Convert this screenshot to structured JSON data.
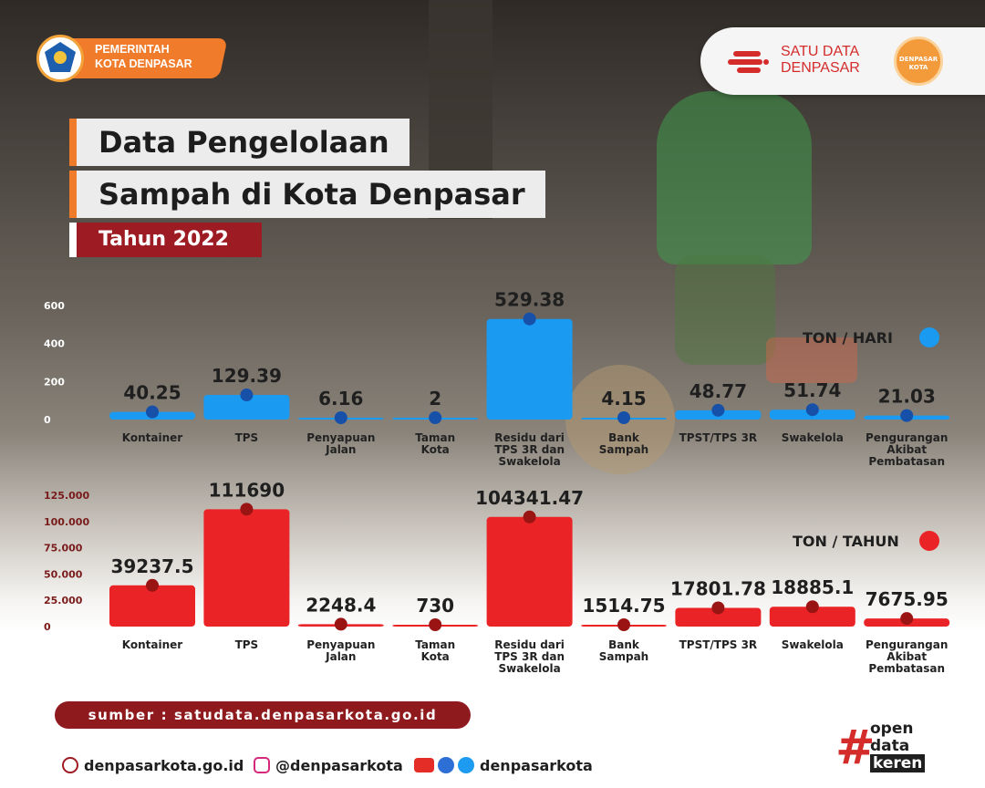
{
  "header": {
    "gov_line1": "PEMERINTAH",
    "gov_line2": "KOTA DENPASAR",
    "satudata_line1": "SATU DATA",
    "satudata_line2": "DENPASAR",
    "badge_line1": "DENPASAR",
    "badge_line2": "KOTA"
  },
  "title": {
    "line1": "Data Pengelolaan",
    "line2": "Sampah di Kota Denpasar",
    "year": "Tahun 2022"
  },
  "chart_data": [
    {
      "type": "bar",
      "categories": [
        "Kontainer",
        "TPS",
        "Penyapuan Jalan",
        "Taman Kota",
        "Residu dari TPS 3R dan Swakelola",
        "Bank Sampah",
        "TPST/TPS 3R",
        "Swakelola",
        "Pengurangan Akibat Pembatasan"
      ],
      "category_lines": [
        [
          "Kontainer"
        ],
        [
          "TPS"
        ],
        [
          "Penyapuan",
          "Jalan"
        ],
        [
          "Taman",
          "Kota"
        ],
        [
          "Residu dari",
          "TPS 3R dan",
          "Swakelola"
        ],
        [
          "Bank",
          "Sampah"
        ],
        [
          "TPST/TPS 3R"
        ],
        [
          "Swakelola"
        ],
        [
          "Pengurangan",
          "Akibat",
          "Pembatasan"
        ]
      ],
      "values": [
        40.25,
        129.39,
        6.16,
        2,
        529.38,
        4.15,
        48.77,
        51.74,
        21.03
      ],
      "value_labels": [
        "40.25",
        "129.39",
        "6.16",
        "2",
        "529.38",
        "4.15",
        "48.77",
        "51.74",
        "21.03"
      ],
      "legend": "TON / HARI",
      "yticks": [
        "0",
        "200",
        "400",
        "600"
      ],
      "ylim": [
        0,
        600
      ],
      "color": "#1a9af0",
      "dot_color": "#1650a8"
    },
    {
      "type": "bar",
      "categories": [
        "Kontainer",
        "TPS",
        "Penyapuan Jalan",
        "Taman Kota",
        "Residu dari TPS 3R dan Swakelola",
        "Bank Sampah",
        "TPST/TPS 3R",
        "Swakelola",
        "Pengurangan Akibat Pembatasan"
      ],
      "category_lines": [
        [
          "Kontainer"
        ],
        [
          "TPS"
        ],
        [
          "Penyapuan",
          "Jalan"
        ],
        [
          "Taman",
          "Kota"
        ],
        [
          "Residu dari",
          "TPS 3R dan",
          "Swakelola"
        ],
        [
          "Bank",
          "Sampah"
        ],
        [
          "TPST/TPS 3R"
        ],
        [
          "Swakelola"
        ],
        [
          "Pengurangan",
          "Akibat",
          "Pembatasan"
        ]
      ],
      "values": [
        39237.5,
        111690,
        2248.4,
        730,
        104341.47,
        1514.75,
        17801.78,
        18885.1,
        7675.95
      ],
      "value_labels": [
        "39237.5",
        "111690",
        "2248.4",
        "730",
        "104341.47",
        "1514.75",
        "17801.78",
        "18885.1",
        "7675.95"
      ],
      "legend": "TON / TAHUN",
      "yticks": [
        "0",
        "25.000",
        "50.000",
        "75.000",
        "100.000",
        "125.000"
      ],
      "ylim": [
        0,
        125000
      ],
      "color": "#ea2426",
      "dot_color": "#9a1414"
    }
  ],
  "source": "sumber : satudata.denpasarkota.go.id",
  "footer": {
    "website": "denpasarkota.go.id",
    "instagram": "@denpasarkota",
    "social": "denpasarkota",
    "tag_line1": "open",
    "tag_line2": "data",
    "tag_line3": "keren",
    "tag_hash": "#"
  }
}
